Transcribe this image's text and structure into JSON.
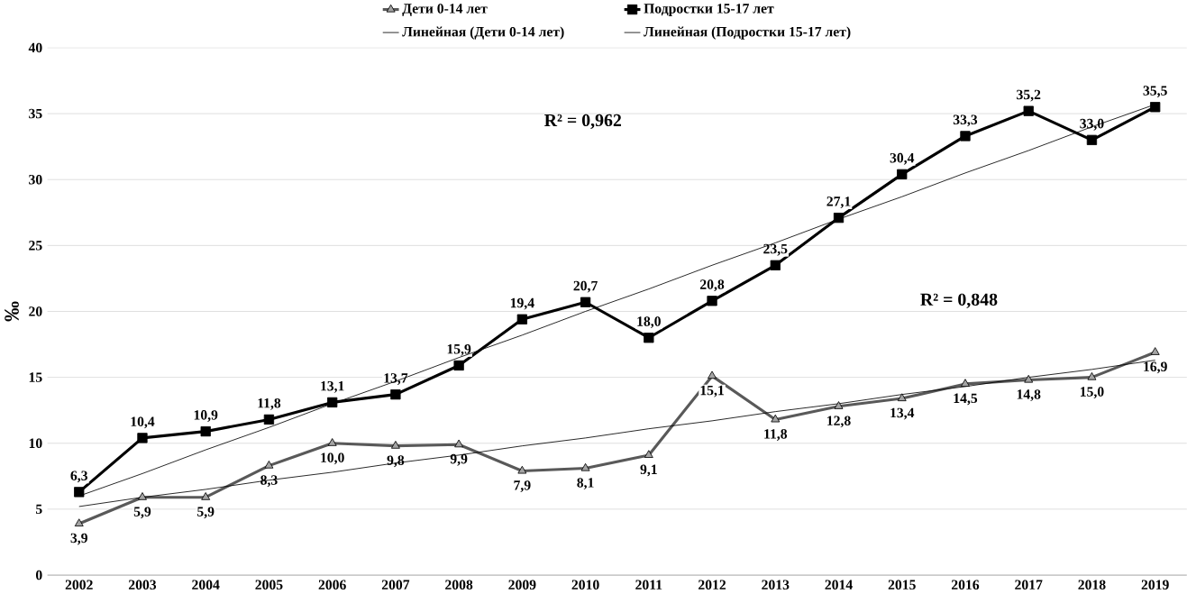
{
  "chart_data": {
    "type": "line",
    "ylabel": "‰",
    "categories": [
      "2002",
      "2003",
      "2004",
      "2005",
      "2006",
      "2007",
      "2008",
      "2009",
      "2010",
      "2011",
      "2012",
      "2013",
      "2014",
      "2015",
      "2016",
      "2017",
      "2018",
      "2019"
    ],
    "series": [
      {
        "name": "Дети 0-14 лет",
        "color": "#595959",
        "marker": "triangle",
        "values": [
          3.9,
          5.9,
          5.9,
          8.3,
          10.0,
          9.8,
          9.9,
          7.9,
          8.1,
          9.1,
          15.1,
          11.8,
          12.8,
          13.4,
          14.5,
          14.8,
          15.0,
          16.9
        ],
        "value_labels": [
          "3,9",
          "5,9",
          "5,9",
          "8,3",
          "10,0",
          "9,8",
          "9,9",
          "7,9",
          "8,1",
          "9,1",
          "15,1",
          "11,8",
          "12,8",
          "13,4",
          "14,5",
          "14,8",
          "15,0",
          "16,9"
        ]
      },
      {
        "name": "Подростки 15-17 лет",
        "color": "#000000",
        "marker": "square",
        "values": [
          6.3,
          10.4,
          10.9,
          11.8,
          13.1,
          13.7,
          15.9,
          19.4,
          20.7,
          18.0,
          20.8,
          23.5,
          27.1,
          30.4,
          33.3,
          35.2,
          33.0,
          35.5
        ],
        "value_labels": [
          "6,3",
          "10,4",
          "10,9",
          "11,8",
          "13,1",
          "13,7",
          "15,9",
          "19,4",
          "20,7",
          "18,0",
          "20,8",
          "23,5",
          "27,1",
          "30,4",
          "33,3",
          "35,2",
          "33,0",
          "35,5"
        ]
      },
      {
        "name": "Линейная (Дети 0-14 лет)",
        "color": "#000000",
        "marker": "none",
        "values": [
          5.2,
          5.9,
          6.5,
          7.2,
          7.8,
          8.5,
          9.1,
          9.8,
          10.4,
          11.1,
          11.7,
          12.4,
          13.0,
          13.7,
          14.3,
          15.0,
          15.6,
          16.3
        ]
      },
      {
        "name": "Линейная (Подростки 15-17 лет)",
        "color": "#000000",
        "marker": "none",
        "values": [
          6.0,
          7.7,
          9.5,
          11.2,
          13.0,
          14.7,
          16.5,
          18.2,
          20.0,
          21.7,
          23.5,
          25.2,
          27.0,
          28.7,
          30.5,
          32.2,
          34.0,
          35.7
        ]
      }
    ],
    "annotations": [
      "R² = 0,962",
      "R² = 0,848"
    ],
    "ylim": [
      0,
      40
    ],
    "yticks": [
      0,
      5,
      10,
      15,
      20,
      25,
      30,
      35,
      40
    ],
    "grid": "y",
    "legend": "top"
  }
}
